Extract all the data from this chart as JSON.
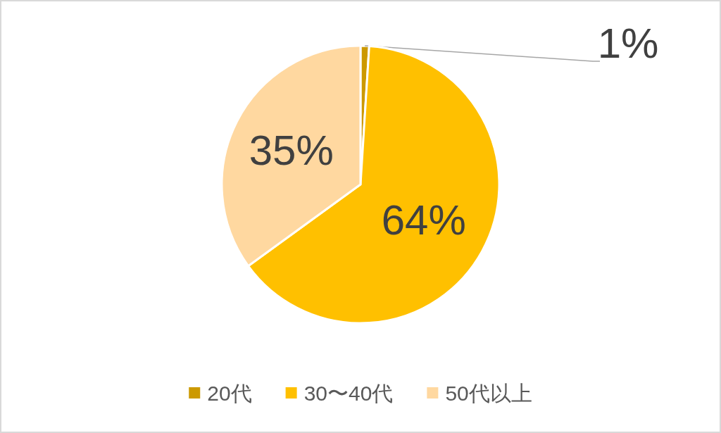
{
  "chart_data": {
    "type": "pie",
    "categories": [
      "20代",
      "30〜40代",
      "50代以上"
    ],
    "values": [
      1,
      64,
      35
    ],
    "colors": [
      "#cc9900",
      "#ffc000",
      "#ffd8a0"
    ],
    "value_labels": [
      "1%",
      "64%",
      "35%"
    ],
    "legend": "bottom"
  }
}
